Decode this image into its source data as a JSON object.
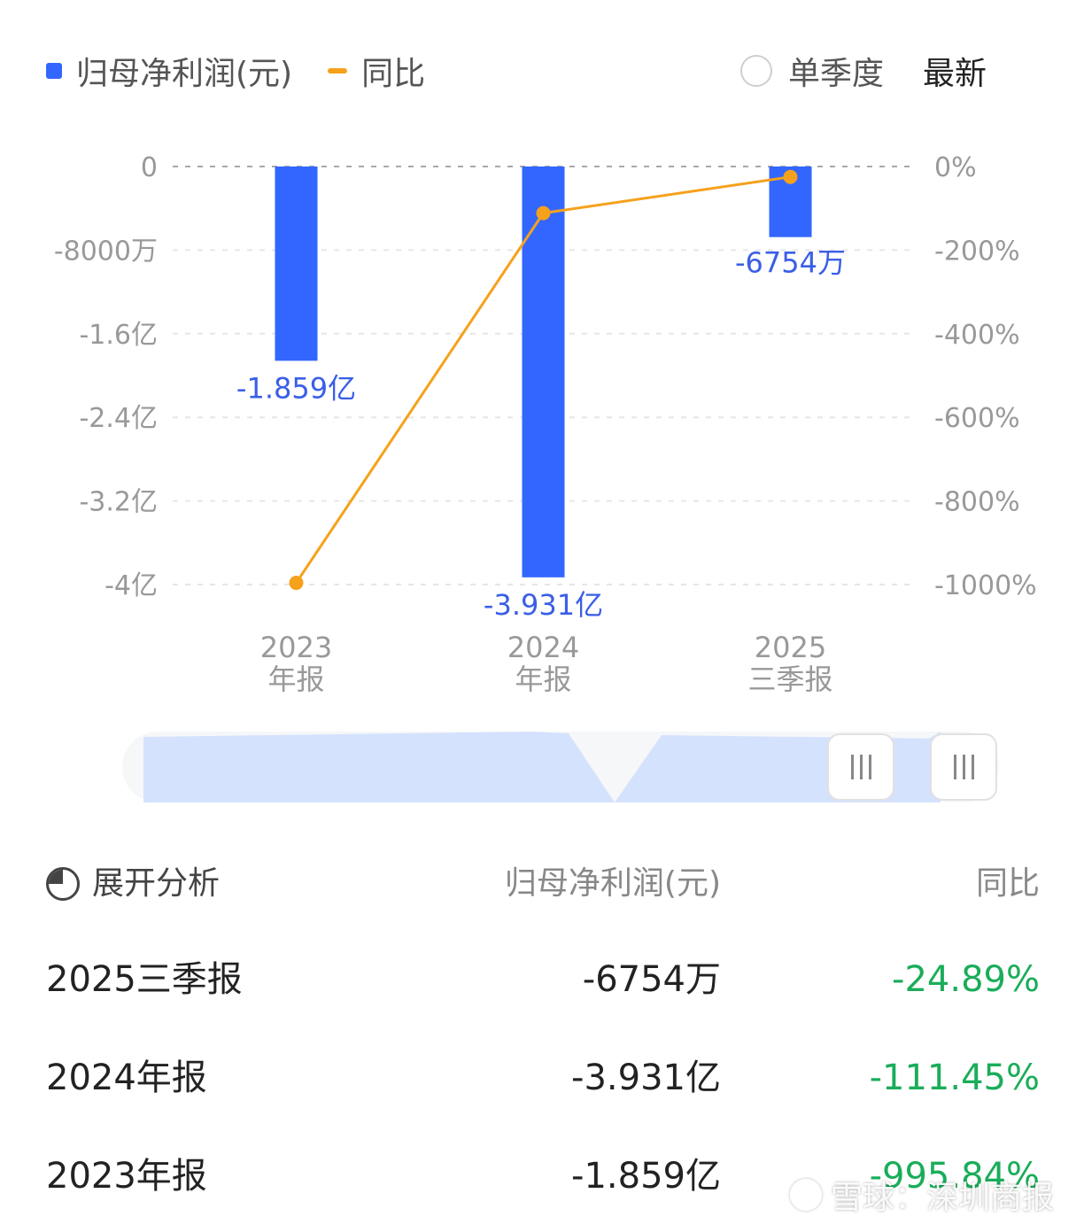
{
  "legend": {
    "bar_label": "归母净利润(元)",
    "line_label": "同比",
    "bar_color": "#3366ff",
    "line_color": "#f5a11c"
  },
  "controls": {
    "single_quarter_label": "单季度",
    "latest_label": "最新",
    "single_quarter_checked": false
  },
  "chart_data": {
    "type": "bar",
    "categories": [
      {
        "year": "2023",
        "period": "年报"
      },
      {
        "year": "2024",
        "period": "年报"
      },
      {
        "year": "2025",
        "period": "三季报"
      }
    ],
    "series": [
      {
        "name": "归母净利润(元)",
        "type": "bar",
        "axis": "left",
        "values": [
          -185900000,
          -393100000,
          -67540000
        ],
        "labels": [
          "-1.859亿",
          "-3.931亿",
          "-6754万"
        ]
      },
      {
        "name": "同比",
        "type": "line",
        "axis": "right",
        "values": [
          -995.84,
          -111.45,
          -24.89
        ]
      }
    ],
    "left_axis": {
      "ticks": [
        0,
        -80000000,
        -160000000,
        -240000000,
        -320000000,
        -400000000
      ],
      "tick_labels": [
        "0",
        "-8000万",
        "-1.6亿",
        "-2.4亿",
        "-3.2亿",
        "-4亿"
      ],
      "range": [
        -400000000,
        0
      ]
    },
    "right_axis": {
      "ticks": [
        0,
        -200,
        -400,
        -600,
        -800,
        -1000
      ],
      "tick_labels": [
        "0%",
        "-200%",
        "-400%",
        "-600%",
        "-800%",
        "-1000%"
      ],
      "range": [
        -1000,
        0
      ]
    },
    "grid": true,
    "legend_position": "top-left"
  },
  "range_slider": {
    "start": 0,
    "end": 1
  },
  "table": {
    "expand_label": "展开分析",
    "col_profit": "归母净利润(元)",
    "col_yoy": "同比",
    "rows": [
      {
        "period": "2025三季报",
        "profit": "-6754万",
        "yoy": "-24.89%"
      },
      {
        "period": "2024年报",
        "profit": "-3.931亿",
        "yoy": "-111.45%"
      },
      {
        "period": "2023年报",
        "profit": "-1.859亿",
        "yoy": "-995.84%"
      }
    ]
  },
  "watermark": {
    "text": "雪球：深圳商报"
  }
}
